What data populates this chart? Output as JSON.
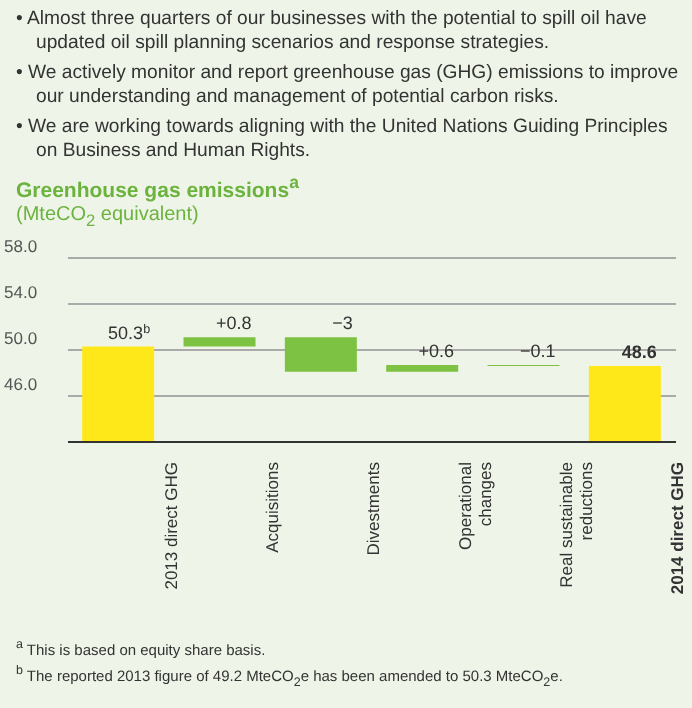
{
  "chart_data": {
    "type": "bar",
    "title": "Greenhouse gas emissions$^{a}$",
    "subtitle": "(MteCO$_{2}$ equivalent)",
    "annotations": [
      "• Almost three quarters of our businesses with the potential to spill oil have updated oil spill planning scenarios and response strategies.",
      "• We actively monitor and report greenhouse gas (GHG) emissions to improve our understanding and management of potential carbon risks.",
      "• We are working towards aligning with the United Nations Guiding Principles on Business and Human Rights.",
      "$^{a}$ This is based on equity share basis.",
      "$^{b}$ The reported 2013 figure of 49.2 MteCO$_{2}$e has been amended to 50.3 MteCO$_{2}$e."
    ],
    "categories": [
      "2013 direct GHG",
      "Acquisitions",
      "Divestments",
      "Operational changes",
      "Real sustainable reductions",
      "2014 direct GHG"
    ],
    "values": [
      8.3,
      0.8,
      -3,
      0.6,
      -0.1,
      6.6
    ],
    "base": [
      42,
      50.3,
      51.1,
      48.1,
      48.7,
      42
    ],
    "colors": [
      "#ffe81a",
      "#7dc242",
      "#7dc242",
      "#7dc242",
      "#7dc242",
      "#ffe81a"
    ],
    "value_labels": [
      "50.3$^{b}$",
      "+0.8",
      "−3",
      "+0.6",
      "−0.1",
      "48.6"
    ],
    "ylim": [
      42,
      58
    ],
    "yticks": [
      {
        "value": 46,
        "label": "46.0"
      },
      {
        "value": 50,
        "label": "50.0"
      },
      {
        "value": 54,
        "label": "54.0"
      },
      {
        "value": 58,
        "label": "58.0"
      }
    ],
    "grid": "y",
    "legend": false
  }
}
